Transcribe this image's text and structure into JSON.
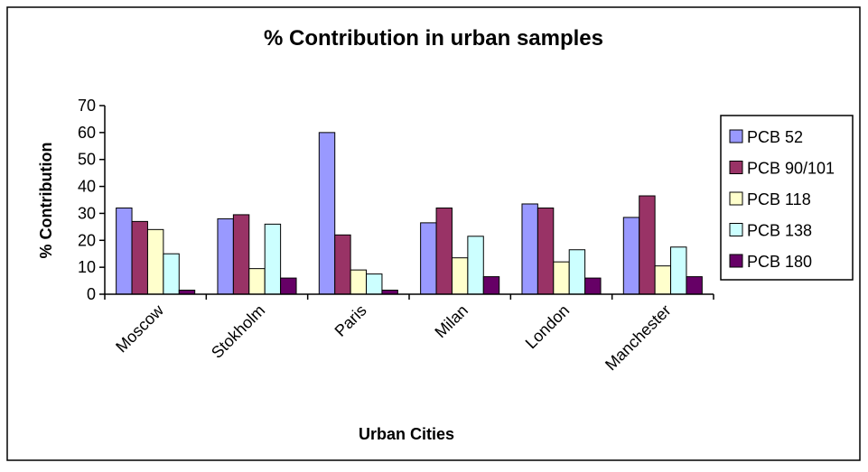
{
  "chart_data": {
    "type": "bar",
    "title": "% Contribution in urban samples",
    "xlabel": "Urban Cities",
    "ylabel": "% Contribution",
    "ylim": [
      0,
      70
    ],
    "yticks": [
      0,
      10,
      20,
      30,
      40,
      50,
      60,
      70
    ],
    "grid": false,
    "legend_position": "right",
    "categories": [
      "Moscow",
      "Stokholm",
      "Paris",
      "Milan",
      "London",
      "Manchester"
    ],
    "series": [
      {
        "name": "PCB 52",
        "color": "#9999ff",
        "values": [
          32,
          28,
          60,
          26.5,
          33.5,
          28.5
        ]
      },
      {
        "name": "PCB 90/101",
        "color": "#993366",
        "values": [
          27,
          29.5,
          22,
          32,
          32,
          36.5
        ]
      },
      {
        "name": "PCB 118",
        "color": "#ffffcc",
        "values": [
          24,
          9.5,
          9,
          13.5,
          12,
          10.5
        ]
      },
      {
        "name": "PCB 138",
        "color": "#ccffff",
        "values": [
          15,
          26,
          7.5,
          21.5,
          16.5,
          17.5
        ]
      },
      {
        "name": "PCB 180",
        "color": "#660066",
        "values": [
          1.5,
          6,
          1.5,
          6.5,
          6,
          6.5
        ]
      }
    ]
  }
}
